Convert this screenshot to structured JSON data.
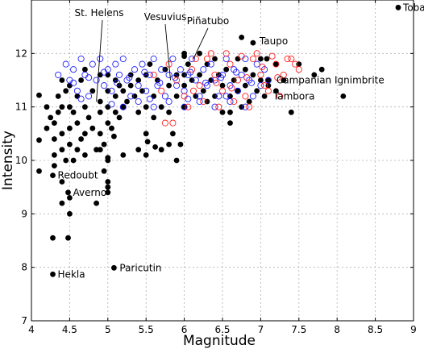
{
  "chart_data": {
    "type": "scatter",
    "title": "",
    "xlabel": "Magnitude",
    "ylabel": "Intensity",
    "xlim": [
      4,
      9
    ],
    "ylim": [
      7,
      13
    ],
    "xticks": [
      "4",
      "4.5",
      "5",
      "5.5",
      "6",
      "6.5",
      "7",
      "7.5",
      "8",
      "8.5",
      "9"
    ],
    "yticks": [
      "7",
      "8",
      "9",
      "10",
      "11",
      "12"
    ],
    "grid": true,
    "legend": "none",
    "series": [
      {
        "marker": "filled-circle",
        "color": "#000000",
        "points": [
          [
            4.1,
            11.22
          ],
          [
            4.1,
            10.38
          ],
          [
            4.1,
            9.8
          ],
          [
            4.2,
            11.0
          ],
          [
            4.2,
            10.6
          ],
          [
            4.25,
            10.8
          ],
          [
            4.3,
            10.4
          ],
          [
            4.3,
            10.1
          ],
          [
            4.3,
            9.9
          ],
          [
            4.3,
            10.7
          ],
          [
            4.35,
            10.9
          ],
          [
            4.35,
            11.2
          ],
          [
            4.4,
            11.5
          ],
          [
            4.4,
            11.0
          ],
          [
            4.4,
            10.5
          ],
          [
            4.4,
            10.2
          ],
          [
            4.4,
            9.6
          ],
          [
            4.4,
            9.2
          ],
          [
            4.45,
            11.3
          ],
          [
            4.5,
            11.4
          ],
          [
            4.5,
            11.0
          ],
          [
            4.5,
            10.6
          ],
          [
            4.5,
            10.3
          ],
          [
            4.5,
            9.3
          ],
          [
            4.5,
            9.0
          ],
          [
            4.55,
            10.9
          ],
          [
            4.6,
            11.2
          ],
          [
            4.6,
            10.7
          ],
          [
            4.6,
            10.2
          ],
          [
            4.65,
            11.5
          ],
          [
            4.7,
            11.7
          ],
          [
            4.7,
            11.0
          ],
          [
            4.7,
            10.5
          ],
          [
            4.7,
            10.1
          ],
          [
            4.75,
            10.8
          ],
          [
            4.8,
            11.3
          ],
          [
            4.8,
            10.6
          ],
          [
            4.85,
            9.2
          ],
          [
            4.85,
            10.2
          ],
          [
            4.9,
            11.6
          ],
          [
            4.9,
            11.1
          ],
          [
            4.9,
            10.9
          ],
          [
            4.9,
            10.5
          ],
          [
            4.95,
            10.3
          ],
          [
            4.95,
            9.8
          ],
          [
            5.0,
            11.6
          ],
          [
            5.0,
            11.3
          ],
          [
            5.0,
            11.0
          ],
          [
            5.0,
            10.7
          ],
          [
            5.0,
            10.0
          ],
          [
            5.0,
            9.5
          ],
          [
            5.0,
            9.4
          ],
          [
            5.0,
            9.6
          ],
          [
            5.05,
            10.6
          ],
          [
            5.1,
            11.5
          ],
          [
            5.1,
            11.2
          ],
          [
            5.1,
            10.9
          ],
          [
            5.15,
            11.4
          ],
          [
            5.15,
            10.8
          ],
          [
            5.2,
            11.3
          ],
          [
            5.2,
            11.0
          ],
          [
            5.25,
            11.1
          ],
          [
            5.3,
            11.4
          ],
          [
            5.3,
            11.6
          ],
          [
            5.35,
            11.2
          ],
          [
            5.4,
            11.5
          ],
          [
            5.4,
            10.9
          ],
          [
            5.45,
            11.3
          ],
          [
            5.5,
            11.6
          ],
          [
            5.5,
            11.0
          ],
          [
            5.5,
            10.5
          ],
          [
            5.5,
            10.1
          ],
          [
            5.55,
            11.8
          ],
          [
            5.6,
            11.2
          ],
          [
            5.6,
            10.8
          ],
          [
            5.65,
            11.5
          ],
          [
            5.7,
            11.0
          ],
          [
            5.7,
            10.2
          ],
          [
            5.75,
            11.7
          ],
          [
            5.8,
            11.4
          ],
          [
            5.8,
            10.9
          ],
          [
            5.85,
            10.5
          ],
          [
            5.9,
            11.6
          ],
          [
            5.9,
            11.2
          ],
          [
            5.95,
            10.3
          ],
          [
            6.0,
            12.0
          ],
          [
            6.0,
            11.6
          ],
          [
            6.0,
            11.4
          ],
          [
            6.0,
            11.0
          ],
          [
            6.05,
            11.8
          ],
          [
            6.1,
            11.5
          ],
          [
            6.15,
            11.2
          ],
          [
            6.2,
            12.0
          ],
          [
            6.2,
            11.6
          ],
          [
            6.25,
            11.3
          ],
          [
            6.3,
            11.8
          ],
          [
            6.3,
            11.1
          ],
          [
            6.35,
            11.5
          ],
          [
            6.4,
            11.9
          ],
          [
            6.4,
            11.2
          ],
          [
            6.45,
            11.6
          ],
          [
            6.5,
            11.4
          ],
          [
            6.5,
            10.9
          ],
          [
            6.55,
            11.7
          ],
          [
            6.6,
            11.2
          ],
          [
            6.6,
            10.7
          ],
          [
            6.65,
            11.5
          ],
          [
            6.7,
            11.9
          ],
          [
            6.7,
            11.3
          ],
          [
            6.75,
            11.0
          ],
          [
            6.8,
            11.7
          ],
          [
            6.8,
            11.4
          ],
          [
            6.85,
            11.1
          ],
          [
            6.9,
            11.6
          ],
          [
            6.95,
            11.3
          ],
          [
            7.0,
            11.9
          ],
          [
            7.0,
            11.5
          ],
          [
            7.05,
            11.2
          ],
          [
            7.1,
            11.4
          ],
          [
            7.2,
            11.8
          ],
          [
            7.3,
            11.5
          ],
          [
            7.4,
            10.9
          ],
          [
            7.5,
            11.8
          ],
          [
            7.7,
            11.6
          ],
          [
            7.8,
            11.7
          ],
          [
            8.08,
            11.2
          ],
          [
            4.28,
            8.55
          ],
          [
            4.48,
            8.55
          ],
          [
            4.28,
            9.72
          ],
          [
            4.48,
            9.4
          ],
          [
            4.28,
            7.87
          ],
          [
            5.08,
            7.99
          ],
          [
            4.45,
            10.0
          ],
          [
            4.55,
            10.0
          ],
          [
            4.65,
            10.4
          ],
          [
            4.9,
            10.2
          ],
          [
            5.0,
            10.05
          ],
          [
            5.08,
            10.45
          ],
          [
            5.2,
            10.1
          ],
          [
            5.4,
            10.2
          ],
          [
            5.52,
            10.35
          ],
          [
            5.62,
            10.25
          ],
          [
            5.8,
            10.3
          ],
          [
            5.9,
            10.0
          ],
          [
            6.0,
            11.95
          ],
          [
            6.6,
            10.9
          ],
          [
            6.75,
            12.3
          ],
          [
            6.9,
            12.2
          ],
          [
            7.08,
            11.9
          ],
          [
            7.1,
            11.5
          ],
          [
            7.2,
            11.3
          ],
          [
            8.8,
            12.86
          ]
        ]
      },
      {
        "marker": "hollow-circle",
        "color": "#2020ff",
        "points": [
          [
            4.35,
            11.6
          ],
          [
            4.45,
            11.8
          ],
          [
            4.5,
            11.5
          ],
          [
            4.55,
            11.7
          ],
          [
            4.6,
            11.3
          ],
          [
            4.65,
            11.9
          ],
          [
            4.7,
            11.6
          ],
          [
            4.75,
            11.2
          ],
          [
            4.8,
            11.8
          ],
          [
            4.85,
            11.5
          ],
          [
            4.9,
            11.9
          ],
          [
            4.95,
            11.4
          ],
          [
            5.0,
            11.7
          ],
          [
            5.05,
            11.3
          ],
          [
            5.1,
            11.8
          ],
          [
            5.15,
            11.6
          ],
          [
            5.2,
            11.9
          ],
          [
            5.25,
            11.5
          ],
          [
            5.3,
            11.2
          ],
          [
            5.35,
            11.7
          ],
          [
            5.4,
            11.4
          ],
          [
            5.45,
            11.8
          ],
          [
            5.5,
            11.3
          ],
          [
            5.55,
            11.6
          ],
          [
            5.6,
            11.9
          ],
          [
            5.65,
            11.4
          ],
          [
            5.7,
            11.7
          ],
          [
            5.75,
            11.2
          ],
          [
            5.8,
            11.6
          ],
          [
            5.85,
            11.9
          ],
          [
            5.9,
            11.4
          ],
          [
            5.95,
            11.7
          ],
          [
            6.0,
            11.3
          ],
          [
            6.05,
            11.6
          ],
          [
            6.1,
            11.9
          ],
          [
            6.15,
            11.5
          ],
          [
            6.2,
            11.2
          ],
          [
            6.25,
            11.7
          ],
          [
            6.3,
            11.4
          ],
          [
            6.35,
            11.8
          ],
          [
            6.4,
            11.5
          ],
          [
            6.45,
            11.2
          ],
          [
            6.5,
            11.6
          ],
          [
            6.55,
            11.9
          ],
          [
            6.6,
            11.4
          ],
          [
            6.65,
            11.7
          ],
          [
            6.7,
            11.3
          ],
          [
            6.75,
            11.6
          ],
          [
            6.8,
            11.9
          ],
          [
            6.85,
            11.5
          ],
          [
            6.9,
            11.2
          ],
          [
            6.95,
            11.8
          ],
          [
            7.0,
            11.4
          ],
          [
            7.05,
            11.7
          ],
          [
            7.1,
            11.5
          ],
          [
            4.55,
            11.45
          ],
          [
            4.75,
            11.55
          ],
          [
            4.95,
            11.65
          ],
          [
            5.12,
            11.45
          ],
          [
            5.28,
            11.55
          ],
          [
            5.48,
            11.65
          ],
          [
            5.68,
            11.45
          ],
          [
            5.88,
            11.55
          ],
          [
            6.08,
            11.65
          ],
          [
            6.28,
            11.45
          ],
          [
            6.48,
            11.55
          ],
          [
            6.68,
            11.65
          ],
          [
            6.88,
            11.45
          ],
          [
            5.2,
            11.0
          ],
          [
            5.4,
            11.1
          ],
          [
            5.6,
            11.0
          ],
          [
            5.8,
            11.1
          ],
          [
            6.0,
            11.0
          ],
          [
            6.2,
            11.1
          ],
          [
            6.4,
            11.0
          ],
          [
            6.6,
            11.1
          ],
          [
            6.8,
            11.0
          ],
          [
            4.65,
            11.15
          ],
          [
            5.05,
            11.05
          ],
          [
            5.55,
            11.15
          ],
          [
            6.05,
            11.15
          ],
          [
            6.55,
            11.2
          ]
        ]
      },
      {
        "marker": "hollow-circle",
        "color": "#ff2020",
        "points": [
          [
            5.8,
            11.8
          ],
          [
            5.9,
            11.5
          ],
          [
            6.0,
            11.2
          ],
          [
            6.1,
            11.7
          ],
          [
            6.2,
            11.4
          ],
          [
            6.3,
            11.9
          ],
          [
            6.4,
            11.6
          ],
          [
            6.5,
            11.3
          ],
          [
            6.6,
            11.8
          ],
          [
            6.7,
            11.5
          ],
          [
            6.8,
            11.2
          ],
          [
            6.9,
            11.9
          ],
          [
            7.0,
            11.6
          ],
          [
            7.1,
            11.3
          ],
          [
            7.2,
            11.8
          ],
          [
            7.3,
            11.6
          ],
          [
            7.4,
            11.9
          ],
          [
            7.5,
            11.7
          ],
          [
            6.05,
            11.0
          ],
          [
            6.25,
            11.1
          ],
          [
            6.45,
            11.0
          ],
          [
            6.65,
            11.1
          ],
          [
            6.85,
            11.0
          ],
          [
            7.05,
            11.4
          ],
          [
            7.25,
            11.2
          ],
          [
            6.15,
            11.9
          ],
          [
            6.35,
            12.0
          ],
          [
            6.55,
            12.0
          ],
          [
            6.75,
            11.95
          ],
          [
            6.95,
            12.0
          ],
          [
            7.15,
            11.95
          ],
          [
            7.35,
            11.9
          ],
          [
            7.45,
            11.8
          ],
          [
            5.7,
            11.3
          ],
          [
            5.6,
            11.6
          ],
          [
            5.85,
            10.7
          ],
          [
            5.75,
            10.7
          ],
          [
            6.12,
            11.3
          ],
          [
            6.42,
            11.45
          ],
          [
            6.62,
            11.35
          ],
          [
            6.82,
            11.55
          ],
          [
            7.02,
            11.75
          ],
          [
            7.22,
            11.55
          ]
        ]
      }
    ],
    "annotations": [
      {
        "text": "Toba",
        "x": 8.8,
        "y": 12.86
      },
      {
        "text": "Taupo",
        "x": 6.9,
        "y": 12.2
      },
      {
        "text": "Campanian Ignimbrite",
        "x": 7.1,
        "y": 11.5
      },
      {
        "text": "Tambora",
        "x": 7.1,
        "y": 11.2
      },
      {
        "text": "Redoubt",
        "x": 4.28,
        "y": 9.72
      },
      {
        "text": "Averno",
        "x": 4.48,
        "y": 9.4
      },
      {
        "text": "Hekla",
        "x": 4.28,
        "y": 7.87
      },
      {
        "text": "Paricutin",
        "x": 5.08,
        "y": 7.99
      },
      {
        "text": "St. Helens",
        "x": 4.85,
        "y": 11.1
      },
      {
        "text": "Vesuvius",
        "x": 5.82,
        "y": 11.5
      },
      {
        "text": "Piñatubo",
        "x": 6.12,
        "y": 11.9
      }
    ]
  }
}
